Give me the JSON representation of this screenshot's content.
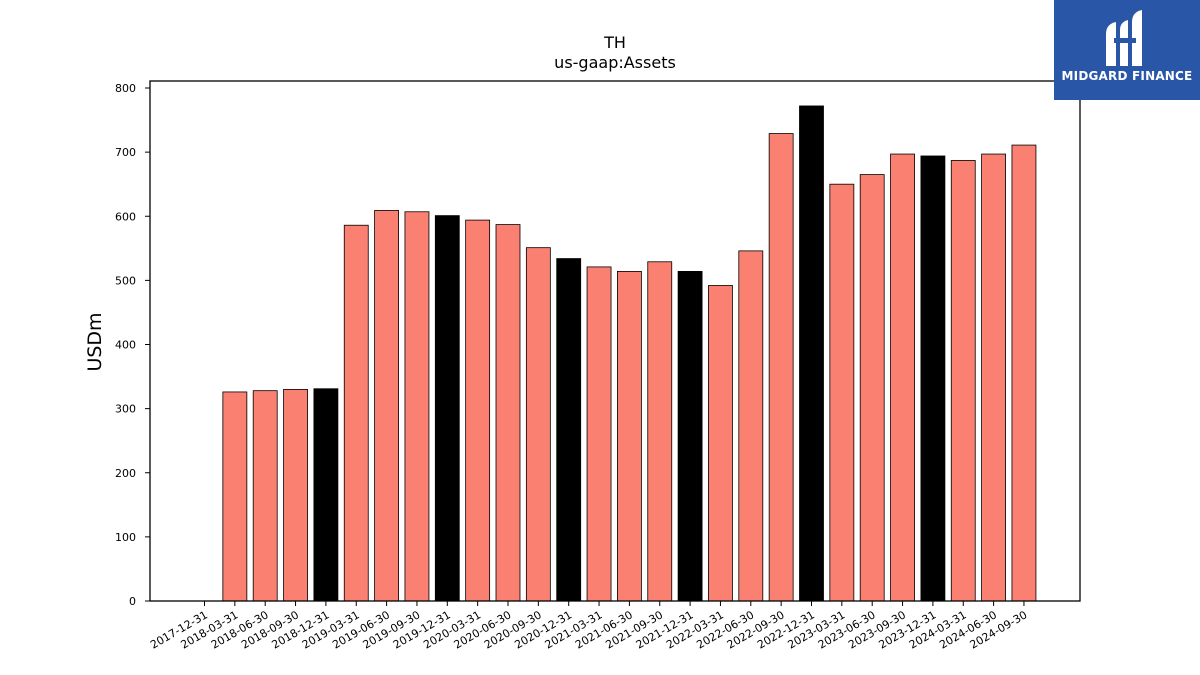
{
  "logo": {
    "text": "MIDGARD FINANCE"
  },
  "chart_data": {
    "type": "bar",
    "title": "TH",
    "subtitle": "us-gaap:Assets",
    "ylabel": "USDm",
    "xlabel": "",
    "ylim": [
      0,
      815
    ],
    "yticks": [
      0,
      100,
      200,
      300,
      400,
      500,
      600,
      700,
      800
    ],
    "categories": [
      "2017-12-31",
      "2018-03-31",
      "2018-06-30",
      "2018-09-30",
      "2018-12-31",
      "2019-03-31",
      "2019-06-30",
      "2019-09-30",
      "2019-12-31",
      "2020-03-31",
      "2020-06-30",
      "2020-09-30",
      "2020-12-31",
      "2021-03-31",
      "2021-06-30",
      "2021-09-30",
      "2021-12-31",
      "2022-03-31",
      "2022-06-30",
      "2022-09-30",
      "2022-12-31",
      "2023-03-31",
      "2023-06-30",
      "2023-09-30",
      "2023-12-31",
      "2024-03-31",
      "2024-06-30",
      "2024-09-30"
    ],
    "values": [
      null,
      326,
      328,
      330,
      331,
      586,
      609,
      607,
      601,
      594,
      587,
      551,
      534,
      521,
      514,
      529,
      514,
      492,
      546,
      729,
      772,
      650,
      665,
      697,
      694,
      687,
      697,
      711
    ],
    "bar_colors": [
      "#fa8072",
      "#fa8072",
      "#fa8072",
      "#fa8072",
      "#000000",
      "#fa8072",
      "#fa8072",
      "#fa8072",
      "#000000",
      "#fa8072",
      "#fa8072",
      "#fa8072",
      "#000000",
      "#fa8072",
      "#fa8072",
      "#fa8072",
      "#000000",
      "#fa8072",
      "#fa8072",
      "#fa8072",
      "#000000",
      "#fa8072",
      "#fa8072",
      "#fa8072",
      "#000000",
      "#fa8072",
      "#fa8072",
      "#fa8072"
    ],
    "grid": false,
    "legend": "none"
  }
}
